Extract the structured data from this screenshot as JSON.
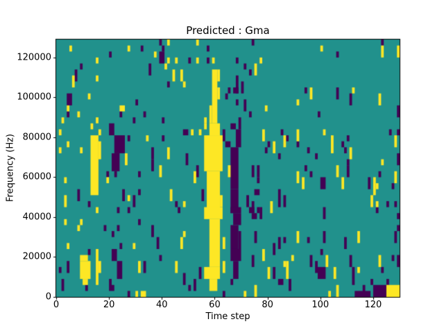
{
  "figure": {
    "title": "Predicted : Gma"
  },
  "chart_data": {
    "type": "heatmap",
    "title": "Predicted : Gma",
    "xlabel": "Time step",
    "ylabel": "Frequency (Hz)",
    "xlim": [
      0,
      130
    ],
    "ylim": [
      0,
      129000
    ],
    "xticks": [
      0,
      20,
      40,
      60,
      80,
      100,
      120
    ],
    "yticks": [
      0,
      20000,
      40000,
      60000,
      80000,
      100000,
      120000
    ],
    "grid": false,
    "legend": false,
    "colormap": "viridis",
    "colors": {
      "teal": "#21918c",
      "yellow": "#fde725",
      "purple": "#440154",
      "spine": "#000000"
    },
    "grid_size": {
      "cols": 130,
      "rows": 43,
      "hz_per_row": 3000
    },
    "cells": {
      "purple": [
        [
          32,
          1
        ],
        [
          20,
          2
        ],
        [
          9,
          4
        ],
        [
          7,
          5,
          1,
          2
        ],
        [
          4,
          9,
          2,
          2
        ],
        [
          4,
          12
        ],
        [
          30,
          10
        ],
        [
          24,
          12
        ],
        [
          29,
          13
        ],
        [
          39,
          0
        ],
        [
          40,
          1
        ],
        [
          39,
          2,
          2,
          2
        ],
        [
          35,
          4,
          1,
          2
        ],
        [
          50,
          3
        ],
        [
          57,
          1
        ],
        [
          57,
          3
        ],
        [
          42,
          7
        ],
        [
          64,
          9
        ],
        [
          40,
          13
        ],
        [
          33,
          12
        ],
        [
          74,
          0
        ],
        [
          68,
          3
        ],
        [
          71,
          4
        ],
        [
          73,
          5
        ],
        [
          68,
          6,
          1,
          3
        ],
        [
          70,
          7,
          1,
          2
        ],
        [
          67,
          8,
          2,
          1
        ],
        [
          65,
          8
        ],
        [
          68,
          10
        ],
        [
          71,
          10,
          1,
          2
        ],
        [
          73,
          12
        ],
        [
          69,
          13,
          1,
          2
        ],
        [
          94,
          8
        ],
        [
          106,
          2
        ],
        [
          123,
          0
        ],
        [
          106,
          8,
          1,
          2
        ],
        [
          111,
          9,
          1,
          2
        ],
        [
          129,
          11,
          1,
          2
        ],
        [
          99,
          12
        ],
        [
          20,
          14,
          2,
          2
        ],
        [
          22,
          16,
          4,
          3
        ],
        [
          21,
          19,
          3,
          3
        ],
        [
          27,
          16
        ],
        [
          31,
          22
        ],
        [
          19,
          22
        ],
        [
          22,
          22
        ],
        [
          8,
          25,
          1,
          2
        ],
        [
          12,
          27
        ],
        [
          25,
          25,
          1,
          2
        ],
        [
          29,
          26,
          1,
          2
        ],
        [
          31,
          25
        ],
        [
          36,
          18,
          1,
          2
        ],
        [
          36,
          20,
          1,
          2
        ],
        [
          40,
          16
        ],
        [
          48,
          15,
          2,
          1
        ],
        [
          49,
          19,
          1,
          2
        ],
        [
          53,
          21,
          1,
          2
        ],
        [
          55,
          25,
          1,
          2
        ],
        [
          45,
          27
        ],
        [
          63,
          15,
          1,
          2
        ],
        [
          64,
          17,
          2,
          1
        ],
        [
          66,
          14,
          2,
          1
        ],
        [
          68,
          15,
          2,
          3
        ],
        [
          66,
          18,
          3,
          7
        ],
        [
          66,
          25,
          3,
          4
        ],
        [
          74,
          21,
          1,
          2
        ],
        [
          76,
          21,
          1,
          2
        ],
        [
          76,
          23
        ],
        [
          75,
          25,
          2,
          1
        ],
        [
          72,
          26,
          1,
          2
        ],
        [
          74,
          27,
          1,
          2
        ],
        [
          84,
          25,
          1,
          3
        ],
        [
          86,
          26,
          1,
          2
        ],
        [
          94,
          21
        ],
        [
          96,
          22
        ],
        [
          95,
          18
        ],
        [
          98,
          19
        ],
        [
          84,
          19
        ],
        [
          79,
          18
        ],
        [
          80,
          17
        ],
        [
          85,
          15
        ],
        [
          87,
          16
        ],
        [
          91,
          17
        ],
        [
          110,
          16
        ],
        [
          108,
          17
        ],
        [
          109,
          18
        ],
        [
          110,
          20
        ],
        [
          110,
          21,
          1,
          2
        ],
        [
          100,
          23,
          2,
          2
        ],
        [
          118,
          23,
          1,
          2
        ],
        [
          122,
          22
        ],
        [
          127,
          24
        ],
        [
          126,
          15
        ],
        [
          129,
          15
        ],
        [
          129,
          19,
          1,
          2
        ],
        [
          125,
          27
        ],
        [
          128,
          27
        ],
        [
          23,
          28
        ],
        [
          27,
          28
        ],
        [
          31,
          30
        ],
        [
          18,
          31
        ],
        [
          23,
          31
        ],
        [
          21,
          32
        ],
        [
          24,
          34
        ],
        [
          12,
          35
        ],
        [
          1,
          38
        ],
        [
          4,
          37,
          1,
          2
        ],
        [
          2,
          40,
          1,
          2
        ],
        [
          11,
          41
        ],
        [
          21,
          35,
          2,
          2
        ],
        [
          23,
          37,
          2,
          3
        ],
        [
          20,
          40,
          1,
          2
        ],
        [
          21,
          41
        ],
        [
          33,
          37,
          1,
          2
        ],
        [
          36,
          31,
          1,
          2
        ],
        [
          38,
          33,
          1,
          2
        ],
        [
          39,
          36
        ],
        [
          46,
          28
        ],
        [
          48,
          39,
          1,
          2
        ],
        [
          54,
          38,
          1,
          2
        ],
        [
          52,
          40,
          1,
          2
        ],
        [
          50,
          41
        ],
        [
          66,
          28,
          4,
          1
        ],
        [
          67,
          29,
          3,
          2
        ],
        [
          66,
          31,
          3,
          4
        ],
        [
          69,
          32,
          1,
          3
        ],
        [
          66,
          35,
          4,
          2
        ],
        [
          67,
          37,
          2,
          3
        ],
        [
          66,
          40
        ],
        [
          73,
          28,
          2,
          1
        ],
        [
          76,
          28
        ],
        [
          77,
          28,
          1,
          2
        ],
        [
          74,
          29,
          2,
          1
        ],
        [
          75,
          32,
          1,
          2
        ],
        [
          74,
          36,
          1,
          2
        ],
        [
          82,
          34,
          1,
          2
        ],
        [
          82,
          38,
          1,
          2
        ],
        [
          84,
          40,
          2,
          1
        ],
        [
          88,
          40,
          1,
          2
        ],
        [
          84,
          33,
          1,
          2
        ],
        [
          86,
          33
        ],
        [
          95,
          33
        ],
        [
          96,
          36,
          1,
          2
        ],
        [
          98,
          37,
          1,
          2
        ],
        [
          100,
          35
        ],
        [
          101,
          28,
          1,
          2
        ],
        [
          101,
          32,
          1,
          2
        ],
        [
          109,
          33,
          1,
          2
        ],
        [
          111,
          36,
          1,
          2
        ],
        [
          112,
          38,
          1,
          2
        ],
        [
          112,
          40
        ],
        [
          116,
          41,
          1,
          2
        ],
        [
          119,
          40
        ],
        [
          121,
          28
        ],
        [
          123,
          38
        ],
        [
          125,
          40
        ],
        [
          127,
          36
        ],
        [
          129,
          29
        ],
        [
          129,
          31
        ],
        [
          128,
          32,
          1,
          2
        ],
        [
          129,
          36,
          1,
          2
        ],
        [
          27,
          42
        ],
        [
          63,
          42
        ],
        [
          113,
          42,
          6,
          1
        ],
        [
          120,
          41,
          5,
          2
        ],
        [
          99,
          38,
          3,
          2
        ]
      ],
      "yellow": [
        [
          5,
          1
        ],
        [
          27,
          1
        ],
        [
          15,
          3
        ],
        [
          6,
          6,
          1,
          2
        ],
        [
          15,
          6
        ],
        [
          12,
          9
        ],
        [
          4,
          11
        ],
        [
          24,
          11,
          2,
          1
        ],
        [
          8,
          12
        ],
        [
          2,
          13
        ],
        [
          15,
          13
        ],
        [
          37,
          2
        ],
        [
          42,
          0
        ],
        [
          42,
          3
        ],
        [
          45,
          3
        ],
        [
          41,
          4
        ],
        [
          53,
          0
        ],
        [
          53,
          3
        ],
        [
          59,
          3
        ],
        [
          44,
          5,
          1,
          2
        ],
        [
          47,
          5,
          1,
          2
        ],
        [
          48,
          7
        ],
        [
          56,
          13
        ],
        [
          59,
          5,
          2,
          9
        ],
        [
          61,
          5,
          1,
          2
        ],
        [
          61,
          8,
          1,
          2
        ],
        [
          58,
          11,
          1,
          3
        ],
        [
          77,
          3
        ],
        [
          75,
          4,
          1,
          2
        ],
        [
          79,
          11
        ],
        [
          91,
          10
        ],
        [
          96,
          8,
          1,
          2
        ],
        [
          100,
          1
        ],
        [
          112,
          8
        ],
        [
          122,
          9,
          1,
          2
        ],
        [
          123,
          1,
          1,
          2
        ],
        [
          129,
          1,
          1,
          2
        ],
        [
          13,
          14
        ],
        [
          1,
          15
        ],
        [
          16,
          15
        ],
        [
          4,
          17
        ],
        [
          1,
          18
        ],
        [
          9,
          18
        ],
        [
          26,
          19,
          1,
          2
        ],
        [
          19,
          23
        ],
        [
          3,
          23
        ],
        [
          3,
          26,
          1,
          2
        ],
        [
          27,
          26
        ],
        [
          13,
          16,
          3,
          10
        ],
        [
          16,
          17,
          1,
          3
        ],
        [
          34,
          16
        ],
        [
          42,
          18,
          1,
          2
        ],
        [
          39,
          21,
          1,
          2
        ],
        [
          52,
          22,
          1,
          2
        ],
        [
          43,
          25,
          1,
          2
        ],
        [
          48,
          27
        ],
        [
          51,
          15
        ],
        [
          54,
          15
        ],
        [
          56,
          14
        ],
        [
          58,
          14,
          4,
          2
        ],
        [
          56,
          16,
          7,
          6
        ],
        [
          57,
          22,
          5,
          7
        ],
        [
          62,
          26,
          1,
          2
        ],
        [
          65,
          21,
          1,
          2
        ],
        [
          78,
          15,
          1,
          2
        ],
        [
          82,
          17,
          1,
          2
        ],
        [
          86,
          16,
          1,
          2
        ],
        [
          91,
          15,
          1,
          2
        ],
        [
          91,
          22,
          1,
          2
        ],
        [
          93,
          23,
          1,
          2
        ],
        [
          81,
          27,
          1,
          2
        ],
        [
          101,
          15
        ],
        [
          104,
          16,
          1,
          3
        ],
        [
          111,
          18,
          1,
          2
        ],
        [
          123,
          20
        ],
        [
          128,
          16,
          1,
          2
        ],
        [
          106,
          21,
          1,
          2
        ],
        [
          108,
          23,
          1,
          2
        ],
        [
          120,
          23,
          1,
          3
        ],
        [
          121,
          24
        ],
        [
          128,
          22,
          1,
          2
        ],
        [
          119,
          26,
          1,
          2
        ],
        [
          121,
          27
        ],
        [
          15,
          28
        ],
        [
          3,
          30
        ],
        [
          9,
          30
        ],
        [
          8,
          31
        ],
        [
          4,
          34
        ],
        [
          29,
          34
        ],
        [
          31,
          37,
          1,
          2
        ],
        [
          9,
          36,
          3,
          1
        ],
        [
          9,
          37,
          4,
          3
        ],
        [
          10,
          40,
          2,
          1
        ],
        [
          15,
          35,
          1,
          6
        ],
        [
          16,
          37,
          1,
          2
        ],
        [
          47,
          33,
          1,
          2
        ],
        [
          48,
          32
        ],
        [
          45,
          37,
          1,
          2
        ],
        [
          56,
          28,
          7,
          2
        ],
        [
          58,
          30,
          4,
          8
        ],
        [
          56,
          38,
          6,
          2
        ],
        [
          58,
          40,
          3,
          2
        ],
        [
          63,
          33,
          1,
          2
        ],
        [
          63,
          37,
          1,
          2
        ],
        [
          75,
          41,
          1,
          2
        ],
        [
          78,
          35,
          1,
          2
        ],
        [
          80,
          38,
          1,
          2
        ],
        [
          86,
          37
        ],
        [
          87,
          37,
          1,
          3
        ],
        [
          89,
          36
        ],
        [
          91,
          32,
          1,
          2
        ],
        [
          102,
          36,
          1,
          2
        ],
        [
          105,
          38,
          1,
          2
        ],
        [
          106,
          41,
          1,
          2
        ],
        [
          114,
          32,
          1,
          2
        ],
        [
          114,
          38
        ],
        [
          122,
          36,
          1,
          2
        ],
        [
          30,
          42
        ],
        [
          32,
          42,
          2,
          1
        ],
        [
          71,
          42
        ],
        [
          103,
          42
        ],
        [
          125,
          41,
          5,
          2
        ]
      ]
    }
  }
}
